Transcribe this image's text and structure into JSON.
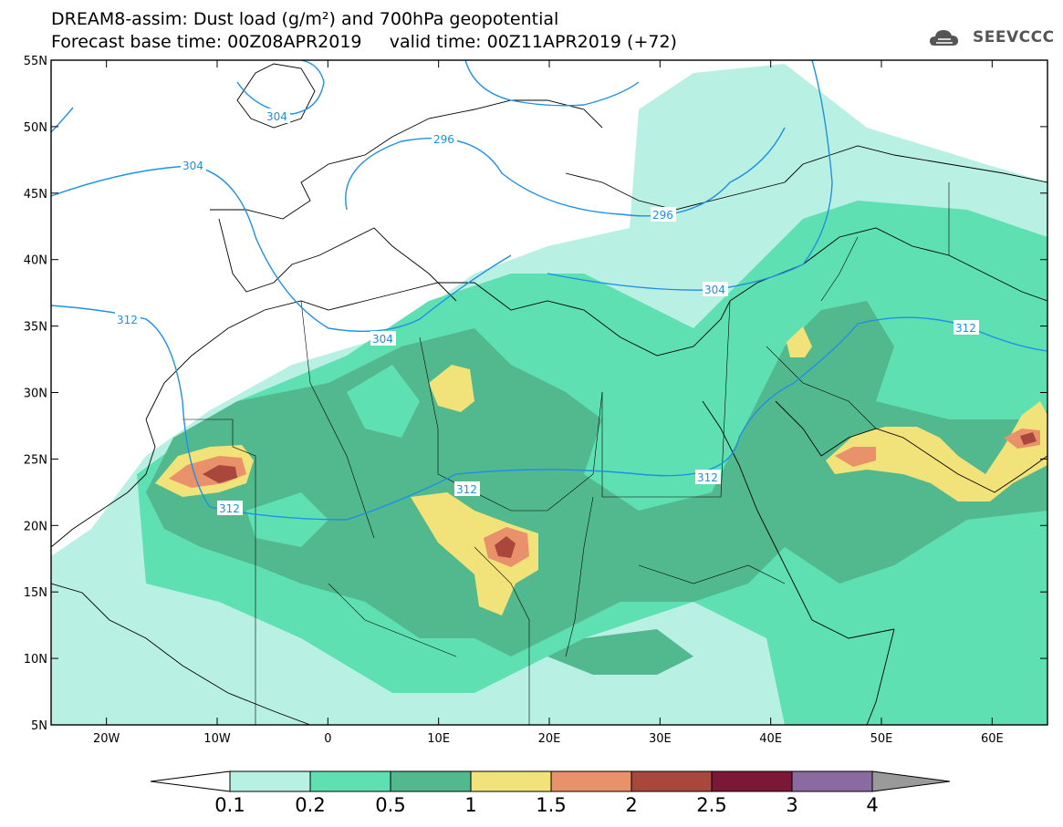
{
  "header": {
    "line1": "DREAM8-assim: Dust load (g/m²) and 700hPa geopotential",
    "line2": "Forecast base time: 00Z08APR2019     valid time: 00Z11APR2019 (+72)",
    "logo_text": "SEEVCCC"
  },
  "map": {
    "lon_range": [
      -25,
      65
    ],
    "lat_range": [
      5,
      55
    ],
    "lon_ticks": [
      "20W",
      "10W",
      "0",
      "10E",
      "20E",
      "30E",
      "40E",
      "50E",
      "60E"
    ],
    "lat_ticks": [
      "55N",
      "50N",
      "45N",
      "40N",
      "35N",
      "30N",
      "25N",
      "20N",
      "15N",
      "10N",
      "5N"
    ],
    "contour_labels": [
      "304",
      "296",
      "304",
      "296",
      "304",
      "304",
      "312",
      "312",
      "312",
      "312",
      "312"
    ],
    "contour_color": "#1e90e6"
  },
  "colorbar": {
    "levels": [
      "0.1",
      "0.2",
      "0.5",
      "1",
      "1.5",
      "2",
      "2.5",
      "3",
      "4"
    ],
    "colors": [
      "#b9f0e4",
      "#5fe0b3",
      "#52b98e",
      "#f2e27a",
      "#e8916a",
      "#a9473c",
      "#7b1837",
      "#8a6aa0"
    ],
    "over_color": "#9a9a9a",
    "under_color": "#ffffff"
  }
}
